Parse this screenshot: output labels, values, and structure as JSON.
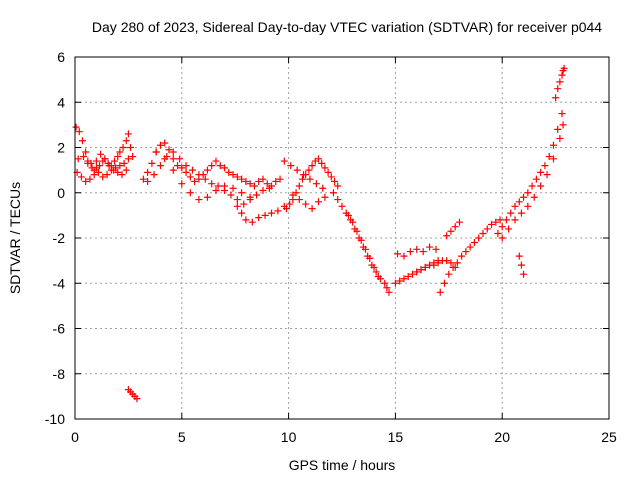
{
  "chart_data": {
    "type": "scatter",
    "title": "Day 280 of 2023, Sidereal Day-to-day VTEC variation (SDTVAR) for receiver p044",
    "xlabel": "GPS time / hours",
    "ylabel": "SDTVAR / TECUs",
    "xlim": [
      0,
      25
    ],
    "ylim": [
      -10,
      6
    ],
    "xticks": [
      "0",
      "5",
      "10",
      "15",
      "20",
      "25"
    ],
    "yticks": [
      "6",
      "4",
      "2",
      "0",
      "-2",
      "-4",
      "-6",
      "-8",
      "-10"
    ],
    "grid": true,
    "marker": "+",
    "colors": {
      "marker": "#ff0000",
      "grid": "#a0a0a0",
      "axis": "#000000"
    },
    "series": [
      {
        "name": "p044",
        "x": [
          0.05,
          0.2,
          0.35,
          0.5,
          0.6,
          0.75,
          0.9,
          1.0,
          1.15,
          1.3,
          1.4,
          1.55,
          1.7,
          1.85,
          2.0,
          2.1,
          2.25,
          2.4,
          2.5,
          2.6,
          0.1,
          0.3,
          0.5,
          0.7,
          0.9,
          1.1,
          1.3,
          1.5,
          1.7,
          1.9,
          2.1,
          2.3,
          2.5,
          2.7,
          0.15,
          0.4,
          0.6,
          0.8,
          1.0,
          1.2,
          1.4,
          1.6,
          1.8,
          2.0,
          2.2,
          2.4,
          2.5,
          2.6,
          2.7,
          2.8,
          2.9,
          3.2,
          3.4,
          3.6,
          3.8,
          4.0,
          4.2,
          4.4,
          4.6,
          4.8,
          5.0,
          5.2,
          5.4,
          5.6,
          5.8,
          6.0,
          6.2,
          6.4,
          6.6,
          6.8,
          7.0,
          7.2,
          7.4,
          7.6,
          7.8,
          8.0,
          8.2,
          8.4,
          8.6,
          8.8,
          9.0,
          9.2,
          9.4,
          9.6,
          3.4,
          3.7,
          4.0,
          4.3,
          4.6,
          4.9,
          5.2,
          5.5,
          5.8,
          6.1,
          6.4,
          6.7,
          7.0,
          7.3,
          7.6,
          7.9,
          8.2,
          8.5,
          8.8,
          9.1,
          3.8,
          4.2,
          4.6,
          5.0,
          5.4,
          5.8,
          6.2,
          6.6,
          7.0,
          7.4,
          7.8,
          8.2,
          7.6,
          7.8,
          8.0,
          8.3,
          8.6,
          8.9,
          9.2,
          9.5,
          9.8,
          9.9,
          10.05,
          10.2,
          10.35,
          10.5,
          10.65,
          10.8,
          10.95,
          11.1,
          11.25,
          11.4,
          11.55,
          11.7,
          11.85,
          12.0,
          12.15,
          12.3,
          9.8,
          10.1,
          10.4,
          10.7,
          11.0,
          11.3,
          11.6,
          10.2,
          10.5,
          10.8,
          11.1,
          11.4,
          11.7,
          12.1,
          12.3,
          12.5,
          12.7,
          12.9,
          13.1,
          13.3,
          13.5,
          13.7,
          13.9,
          14.1,
          14.3,
          14.5,
          14.6,
          14.7,
          12.8,
          13.0,
          13.2,
          13.4,
          13.6,
          13.8,
          14.0,
          14.2,
          15.0,
          15.2,
          15.4,
          15.6,
          15.8,
          16.0,
          16.2,
          16.4,
          16.6,
          16.8,
          17.0,
          17.2,
          17.4,
          17.6,
          17.8,
          15.1,
          15.4,
          15.7,
          16.0,
          16.3,
          16.6,
          16.9,
          16.0,
          16.2,
          16.4,
          16.6,
          16.8,
          17.0,
          17.1,
          17.3,
          17.5,
          17.7,
          17.9,
          18.1,
          18.3,
          18.5,
          18.7,
          18.9,
          19.1,
          19.3,
          19.5,
          19.7,
          19.9,
          17.4,
          17.6,
          17.8,
          18.0,
          19.8,
          20.0,
          20.2,
          20.4,
          20.6,
          20.8,
          21.0,
          21.2,
          21.4,
          21.6,
          21.8,
          22.0,
          22.2,
          22.4,
          22.6,
          22.8,
          20.0,
          20.3,
          20.6,
          20.9,
          21.2,
          21.5,
          21.8,
          22.1,
          22.4,
          22.7,
          22.85,
          20.8,
          20.9,
          21.0,
          22.5,
          22.6,
          22.7,
          22.8,
          22.85,
          22.9
        ],
        "y": [
          2.9,
          2.7,
          2.3,
          1.8,
          1.4,
          1.3,
          1.0,
          1.1,
          1.2,
          1.4,
          1.5,
          1.3,
          1.2,
          1.4,
          1.6,
          1.8,
          2.0,
          2.3,
          2.6,
          2.0,
          0.9,
          0.7,
          0.5,
          0.6,
          0.8,
          0.9,
          0.7,
          0.8,
          1.0,
          1.1,
          1.2,
          1.3,
          1.5,
          1.6,
          1.5,
          1.6,
          1.3,
          1.1,
          1.4,
          1.7,
          1.5,
          1.2,
          1.0,
          0.9,
          0.8,
          1.0,
          -8.7,
          -8.8,
          -8.9,
          -9.0,
          -9.1,
          0.6,
          0.9,
          1.3,
          1.8,
          2.1,
          2.2,
          1.9,
          1.5,
          1.2,
          1.1,
          0.9,
          0.7,
          0.5,
          0.6,
          0.8,
          1.0,
          1.2,
          1.4,
          1.2,
          1.1,
          0.9,
          0.8,
          0.7,
          0.6,
          0.5,
          0.4,
          0.3,
          0.5,
          0.6,
          0.4,
          0.3,
          0.5,
          0.6,
          0.5,
          0.8,
          1.2,
          1.6,
          1.8,
          1.5,
          1.2,
          1.0,
          0.8,
          0.6,
          0.4,
          0.3,
          0.1,
          -0.1,
          -0.3,
          -0.5,
          -0.3,
          -0.1,
          0.1,
          0.2,
          1.8,
          1.5,
          1.0,
          0.4,
          0.0,
          -0.3,
          -0.2,
          0.1,
          0.3,
          0.2,
          0.0,
          -0.2,
          -0.6,
          -0.9,
          -1.2,
          -1.3,
          -1.1,
          -1.0,
          -0.9,
          -0.8,
          -0.6,
          -0.7,
          -0.5,
          -0.3,
          0.0,
          0.3,
          0.6,
          0.8,
          1.0,
          1.2,
          1.4,
          1.5,
          1.3,
          1.1,
          0.9,
          0.7,
          0.5,
          0.3,
          1.4,
          1.2,
          1.0,
          0.8,
          0.6,
          0.4,
          0.2,
          -0.1,
          -0.3,
          -0.5,
          -0.7,
          -0.4,
          -0.2,
          0.0,
          -0.3,
          -0.6,
          -0.9,
          -1.2,
          -1.6,
          -2.0,
          -2.4,
          -2.8,
          -3.2,
          -3.5,
          -3.8,
          -4.0,
          -4.2,
          -4.4,
          -1.0,
          -1.3,
          -1.7,
          -2.1,
          -2.5,
          -2.9,
          -3.3,
          -3.7,
          -4.0,
          -3.9,
          -3.8,
          -3.7,
          -3.6,
          -3.5,
          -3.4,
          -3.3,
          -3.2,
          -3.2,
          -3.1,
          -3.0,
          -3.0,
          -3.1,
          -3.3,
          -2.7,
          -2.8,
          -2.6,
          -2.5,
          -2.6,
          -2.4,
          -2.5,
          -3.5,
          -3.4,
          -3.3,
          -3.2,
          -3.1,
          -3.0,
          -4.4,
          -4.0,
          -3.6,
          -3.3,
          -3.1,
          -2.8,
          -2.6,
          -2.4,
          -2.2,
          -2.0,
          -1.8,
          -1.6,
          -1.4,
          -1.3,
          -1.2,
          -1.9,
          -1.7,
          -1.5,
          -1.3,
          -1.8,
          -1.5,
          -1.2,
          -0.9,
          -0.6,
          -0.4,
          -0.2,
          0.0,
          0.3,
          0.6,
          0.9,
          1.2,
          1.6,
          2.1,
          2.8,
          3.5,
          -2.0,
          -1.6,
          -1.2,
          -0.9,
          -0.6,
          -0.2,
          0.3,
          0.8,
          1.5,
          2.4,
          3.0,
          -2.8,
          -3.2,
          -3.6,
          4.2,
          4.6,
          4.9,
          5.2,
          5.4,
          5.5
        ]
      }
    ]
  }
}
